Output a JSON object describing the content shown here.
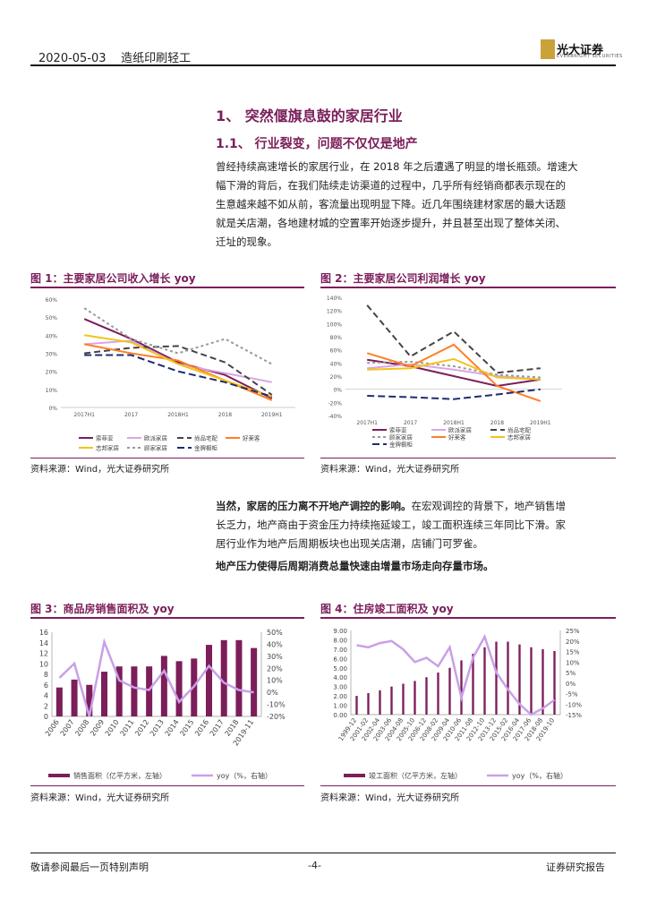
{
  "header": {
    "date_section": "2020-05-03    造纸印刷轻工",
    "logo_text": "光大证券",
    "logo_sub": "EVERBRIGHT SECURITIES"
  },
  "section": {
    "h1": "1、 突然偃旗息鼓的家居行业",
    "h2": "1.1、 行业裂变，问题不仅仅是地产"
  },
  "para1": [
    "曾经持续高速增长的家居行业，在 2018 年之后遭遇了明显的增长瓶颈。增速大",
    "幅下滑的背后，在我们陆续走访渠道的过程中，几乎所有经销商都表示现在的",
    "生意越来越不如从前，客流量出现明显下降。近几年围绕建材家居的最大话题",
    "就是关店潮，各地建材城的空置率开始逐步提升，并且甚至出现了整体关闭、",
    "迁址的现象。"
  ],
  "para2": {
    "lead": "当然，家居的压力离不开地产调控的影响。",
    "lines": [
      "在宏观调控的背景下，地产销售增",
      "长乏力，地产商由于资金压力持续拖延竣工，竣工面积连续三年同比下滑。家",
      "居行业作为地产后周期板块也出现关店潮，店铺门可罗雀。"
    ]
  },
  "para3": "地产压力使得后周期消费总量快速由增量市场走向存量市场。",
  "source_text": "资料来源：Wind，光大证券研究所",
  "footer": {
    "left": "敬请参阅最后一页特别声明",
    "center": "-4-",
    "right": "证券研究报告"
  },
  "colors": {
    "accent": "#7b1e5a",
    "bar": "#7b1e5a",
    "yoy": "#c9a0e8",
    "gold": "#c9a23a"
  },
  "chart_data": [
    {
      "id": "fig1",
      "title": "图 1：主要家居公司收入增长 yoy",
      "type": "line",
      "categories": [
        "2017H1",
        "2017",
        "2018H1",
        "2018",
        "2019H1"
      ],
      "ylim": [
        0,
        60
      ],
      "yticks": [
        "0%",
        "10%",
        "20%",
        "30%",
        "40%",
        "50%",
        "60%"
      ],
      "series": [
        {
          "name": "索菲亚",
          "color": "#7b1e5a",
          "dash": "",
          "values": [
            49,
            38,
            25,
            18,
            5
          ]
        },
        {
          "name": "欧派家居",
          "color": "#d9a6e6",
          "dash": "",
          "values": [
            35,
            37,
            24,
            19,
            14
          ]
        },
        {
          "name": "尚品宅配",
          "color": "#444444",
          "dash": "7,4",
          "values": [
            30,
            33,
            34,
            25,
            7
          ]
        },
        {
          "name": "好莱客",
          "color": "#ff7f27",
          "dash": "",
          "values": [
            35,
            30,
            26,
            15,
            4
          ]
        },
        {
          "name": "志邦家居",
          "color": "#f2c418",
          "dash": "",
          "values": [
            40,
            36,
            24,
            15,
            6
          ]
        },
        {
          "name": "顾家家居",
          "color": "#999999",
          "dash": "3,3",
          "values": [
            55,
            38,
            30,
            38,
            24
          ]
        },
        {
          "name": "金牌橱柜",
          "color": "#1f2d6e",
          "dash": "8,4",
          "values": [
            29,
            29,
            20,
            14,
            6
          ]
        }
      ]
    },
    {
      "id": "fig2",
      "title": "图 2：主要家居公司利润增长 yoy",
      "type": "line",
      "categories": [
        "2017H1",
        "2017",
        "2018H1",
        "2018",
        "2019H1"
      ],
      "ylim": [
        -40,
        140
      ],
      "yticks": [
        "-40%",
        "-20%",
        "0%",
        "20%",
        "40%",
        "60%",
        "80%",
        "100%",
        "120%",
        "140%"
      ],
      "series": [
        {
          "name": "索菲亚",
          "color": "#7b1e5a",
          "dash": "",
          "values": [
            45,
            35,
            20,
            5,
            15
          ]
        },
        {
          "name": "欧派家居",
          "color": "#d9a6e6",
          "dash": "",
          "values": [
            32,
            38,
            30,
            20,
            15
          ]
        },
        {
          "name": "尚品宅配",
          "color": "#444444",
          "dash": "7,4",
          "values": [
            128,
            50,
            88,
            25,
            32
          ]
        },
        {
          "name": "顾家家居",
          "color": "#999999",
          "dash": "3,3",
          "values": [
            40,
            42,
            35,
            22,
            18
          ]
        },
        {
          "name": "好莱客",
          "color": "#ff7f27",
          "dash": "",
          "values": [
            55,
            35,
            68,
            5,
            -18
          ]
        },
        {
          "name": "志邦家居",
          "color": "#f2c418",
          "dash": "",
          "values": [
            30,
            32,
            46,
            18,
            15
          ]
        },
        {
          "name": "金牌橱柜",
          "color": "#1f2d6e",
          "dash": "8,4",
          "values": [
            -10,
            -12,
            -15,
            -8,
            0
          ]
        }
      ]
    },
    {
      "id": "fig3",
      "title": "图 3：商品房销售面积及 yoy",
      "type": "bar",
      "categories": [
        "2006",
        "2007",
        "2008",
        "2009",
        "2010",
        "2011",
        "2012",
        "2013",
        "2014",
        "2015",
        "2016",
        "2017",
        "2018",
        "2019-11"
      ],
      "values": [
        5.5,
        7.0,
        6.0,
        8.5,
        9.5,
        9.5,
        9.5,
        11.5,
        10.5,
        11.0,
        13.6,
        14.5,
        14.5,
        13.0
      ],
      "yoy": [
        12,
        24,
        -20,
        42,
        10,
        4,
        2,
        18,
        -8,
        5,
        22,
        8,
        2,
        0
      ],
      "ylim": [
        0,
        16
      ],
      "yticks": [
        "0",
        "2",
        "4",
        "6",
        "8",
        "10",
        "12",
        "14",
        "16"
      ],
      "y2lim": [
        -20,
        50
      ],
      "y2ticks": [
        "-20%",
        "-10%",
        "0%",
        "10%",
        "20%",
        "30%",
        "40%",
        "50%"
      ],
      "legend": [
        "销售面积（亿平方米，左轴）",
        "yoy（%，右轴）"
      ]
    },
    {
      "id": "fig4",
      "title": "图 4：住房竣工面积及 yoy",
      "type": "bar",
      "categories": [
        "1999-12",
        "2001-02",
        "2002-04",
        "2003-06",
        "2004-08",
        "2005-10",
        "2006-12",
        "2008-02",
        "2009-04",
        "2010-06",
        "2011-08",
        "2012-10",
        "2013-12",
        "2015-02",
        "2016-04",
        "2017-06",
        "2018-08",
        "2019-10"
      ],
      "values": [
        2.0,
        2.3,
        2.6,
        3.0,
        3.3,
        3.6,
        4.0,
        4.5,
        5.0,
        5.8,
        6.5,
        7.2,
        7.8,
        7.8,
        7.5,
        7.2,
        7.0,
        6.8
      ],
      "yoy": [
        18,
        17,
        19,
        20,
        16,
        10,
        12,
        8,
        17,
        -7,
        12,
        22,
        5,
        -3,
        -10,
        -15,
        -12,
        -8
      ],
      "ylim": [
        0,
        9
      ],
      "yticks": [
        "0.00",
        "1.00",
        "2.00",
        "3.00",
        "4.00",
        "5.00",
        "6.00",
        "7.00",
        "8.00",
        "9.00"
      ],
      "y2lim": [
        -15,
        25
      ],
      "y2ticks": [
        "-15%",
        "-10%",
        "-5%",
        "0%",
        "5%",
        "10%",
        "15%",
        "20%",
        "25%"
      ],
      "legend": [
        "竣工面积（亿平方米，左轴）",
        "yoy（%，右轴）"
      ]
    }
  ]
}
